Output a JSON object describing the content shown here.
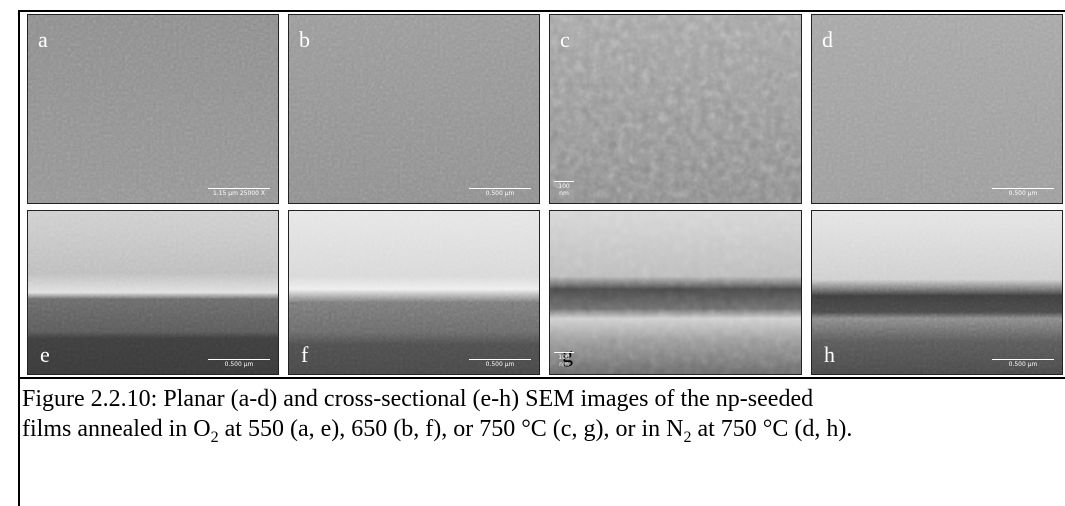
{
  "panels": [
    {
      "label": "a",
      "scale": "1.15 µm  25000 X"
    },
    {
      "label": "b",
      "scale": "0.500 µm"
    },
    {
      "label": "c",
      "scale": "100 nm"
    },
    {
      "label": "d",
      "scale": "0.500 µm"
    },
    {
      "label": "e",
      "scale": "0.500 µm"
    },
    {
      "label": "f",
      "scale": "0.500 µm"
    },
    {
      "label": "g",
      "scale": "100 nm"
    },
    {
      "label": "h",
      "scale": "0.500 µm"
    }
  ],
  "caption": {
    "lines": [
      [
        {
          "text": "Figure 2.2.10: Planar (a-d) and cross-sectional (e-h) SEM images of the np-seeded"
        }
      ],
      [
        {
          "text": "films annealed in O"
        },
        {
          "sub": "2"
        },
        {
          "text": " at 550 (a, e), 650 (b, f), or 750 °C (c, g), or in N"
        },
        {
          "sub": "2"
        },
        {
          "text": " at 750 °C (d, h)."
        }
      ]
    ]
  }
}
